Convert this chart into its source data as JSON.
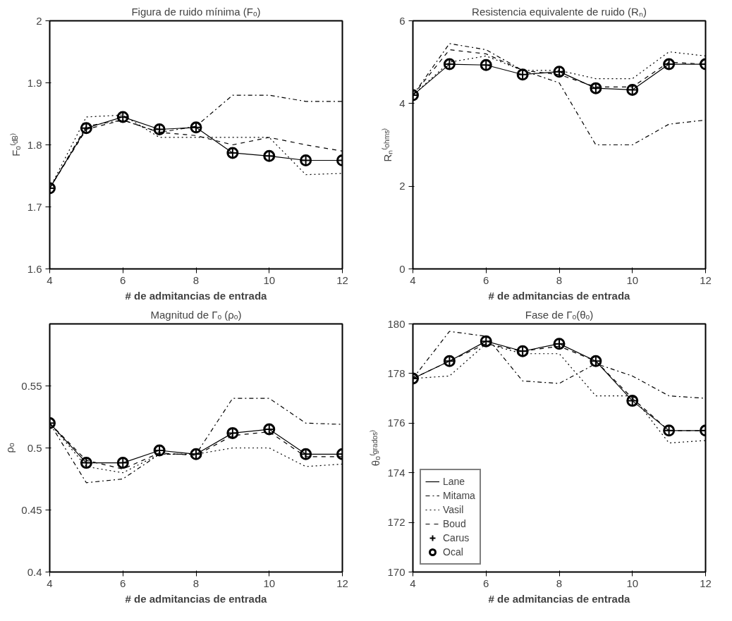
{
  "chart_data": [
    {
      "type": "line",
      "title": "Figura de ruido mínima (Fₒ)",
      "xlabel": "# de admitancias de entrada",
      "ylabel": "Fₒ⁽ᵈᴮ⁾",
      "x": [
        4,
        5,
        6,
        7,
        8,
        9,
        10,
        11,
        12
      ],
      "xlim": [
        4,
        12
      ],
      "xticks": [
        4,
        6,
        8,
        10,
        12
      ],
      "ylim": [
        1.6,
        2
      ],
      "yticks": [
        1.6,
        1.7,
        1.8,
        1.9,
        2
      ],
      "grid": false,
      "legend": false,
      "series": [
        {
          "color": "#000000",
          "line_style": "solid",
          "marker": "none",
          "values": [
            1.73,
            1.827,
            1.845,
            1.825,
            1.828,
            1.787,
            1.782,
            1.775,
            1.775
          ]
        },
        {
          "color": "#000000",
          "line_style": "dashdot",
          "marker": "none",
          "values": [
            1.73,
            1.83,
            1.84,
            1.82,
            1.83,
            1.88,
            1.88,
            1.87,
            1.87
          ]
        },
        {
          "color": "#000000",
          "line_style": "dotted",
          "marker": "none",
          "values": [
            1.73,
            1.845,
            1.848,
            1.812,
            1.812,
            1.812,
            1.812,
            1.752,
            1.754
          ]
        },
        {
          "color": "#000000",
          "line_style": "dashed",
          "marker": "none",
          "values": [
            1.73,
            1.825,
            1.84,
            1.82,
            1.815,
            1.8,
            1.812,
            1.8,
            1.79
          ]
        },
        {
          "color": "#000000",
          "type": "scatter",
          "marker": "cross",
          "values": [
            1.73,
            1.827,
            1.845,
            1.825,
            1.828,
            1.787,
            1.782,
            1.775,
            1.775
          ]
        },
        {
          "color": "#000000",
          "type": "scatter",
          "marker": "circle",
          "values": [
            1.73,
            1.827,
            1.845,
            1.825,
            1.828,
            1.787,
            1.782,
            1.775,
            1.775
          ]
        }
      ]
    },
    {
      "type": "line",
      "title": "Resistencia equivalente de ruido (Rₙ)",
      "xlabel": "# de admitancias de entrada",
      "ylabel": "Rₙ⁽ᵒʰᵐˢ⁾",
      "x": [
        4,
        5,
        6,
        7,
        8,
        9,
        10,
        11,
        12
      ],
      "xlim": [
        4,
        12
      ],
      "xticks": [
        4,
        6,
        8,
        10,
        12
      ],
      "ylim": [
        0,
        6
      ],
      "yticks": [
        0,
        2,
        4,
        6
      ],
      "grid": false,
      "legend": false,
      "series": [
        {
          "color": "#000000",
          "line_style": "solid",
          "marker": "none",
          "values": [
            4.2,
            4.95,
            4.93,
            4.7,
            4.77,
            4.37,
            4.33,
            4.95,
            4.95
          ]
        },
        {
          "color": "#000000",
          "line_style": "dashdot",
          "marker": "none",
          "values": [
            4.2,
            5.45,
            5.3,
            4.8,
            4.5,
            3.0,
            3.0,
            3.5,
            3.6
          ]
        },
        {
          "color": "#000000",
          "line_style": "dotted",
          "marker": "none",
          "values": [
            4.2,
            5.0,
            5.15,
            4.8,
            4.8,
            4.6,
            4.6,
            5.25,
            5.15
          ]
        },
        {
          "color": "#000000",
          "line_style": "dashed",
          "marker": "none",
          "values": [
            4.2,
            5.3,
            5.2,
            4.8,
            4.7,
            4.4,
            4.4,
            5.0,
            4.95
          ]
        },
        {
          "color": "#000000",
          "type": "scatter",
          "marker": "cross",
          "values": [
            4.2,
            4.95,
            4.93,
            4.7,
            4.77,
            4.37,
            4.33,
            4.95,
            4.95
          ]
        },
        {
          "color": "#000000",
          "type": "scatter",
          "marker": "circle",
          "values": [
            4.2,
            4.95,
            4.93,
            4.7,
            4.77,
            4.37,
            4.33,
            4.95,
            4.95
          ]
        }
      ]
    },
    {
      "type": "line",
      "title": "Magnitud de Γₒ (ρₒ)",
      "xlabel": "# de admitancias de entrada",
      "ylabel": "ρₒ",
      "x": [
        4,
        5,
        6,
        7,
        8,
        9,
        10,
        11,
        12
      ],
      "xlim": [
        4,
        12
      ],
      "xticks": [
        4,
        6,
        8,
        10,
        12
      ],
      "ylim": [
        0.4,
        0.6
      ],
      "yticks": [
        0.4,
        0.45,
        0.5,
        0.55
      ],
      "grid": false,
      "legend": false,
      "series": [
        {
          "color": "#000000",
          "line_style": "solid",
          "marker": "none",
          "values": [
            0.52,
            0.488,
            0.488,
            0.498,
            0.495,
            0.512,
            0.515,
            0.495,
            0.495
          ]
        },
        {
          "color": "#000000",
          "line_style": "dashdot",
          "marker": "none",
          "values": [
            0.52,
            0.472,
            0.475,
            0.495,
            0.495,
            0.54,
            0.54,
            0.52,
            0.519
          ]
        },
        {
          "color": "#000000",
          "line_style": "dotted",
          "marker": "none",
          "values": [
            0.52,
            0.485,
            0.48,
            0.495,
            0.495,
            0.5,
            0.5,
            0.485,
            0.487
          ]
        },
        {
          "color": "#000000",
          "line_style": "dashed",
          "marker": "none",
          "values": [
            0.52,
            0.49,
            0.483,
            0.496,
            0.494,
            0.51,
            0.513,
            0.493,
            0.493
          ]
        },
        {
          "color": "#000000",
          "type": "scatter",
          "marker": "cross",
          "values": [
            0.52,
            0.488,
            0.488,
            0.498,
            0.495,
            0.512,
            0.515,
            0.495,
            0.495
          ]
        },
        {
          "color": "#000000",
          "type": "scatter",
          "marker": "circle",
          "values": [
            0.52,
            0.488,
            0.488,
            0.498,
            0.495,
            0.512,
            0.515,
            0.495,
            0.495
          ]
        }
      ]
    },
    {
      "type": "line",
      "title": "Fase de Γₒ(θₒ)",
      "xlabel": "# de admitancias de entrada",
      "ylabel": "θₒ⁽ᵍʳᵃᵈᵒˢ⁾",
      "x": [
        4,
        5,
        6,
        7,
        8,
        9,
        10,
        11,
        12
      ],
      "xlim": [
        4,
        12
      ],
      "xticks": [
        4,
        6,
        8,
        10,
        12
      ],
      "ylim": [
        170,
        180
      ],
      "yticks": [
        170,
        172,
        174,
        176,
        178,
        180
      ],
      "grid": false,
      "legend": "bottom left",
      "series": [
        {
          "name": "Lane",
          "color": "#000000",
          "line_style": "solid",
          "marker": "none",
          "values": [
            177.8,
            178.5,
            179.3,
            178.9,
            179.2,
            178.5,
            176.9,
            175.7,
            175.7
          ]
        },
        {
          "name": "Mitama",
          "color": "#000000",
          "line_style": "dashdot",
          "marker": "none",
          "values": [
            177.8,
            179.7,
            179.5,
            177.7,
            177.6,
            178.4,
            177.9,
            177.1,
            177.0
          ]
        },
        {
          "name": "Vasil",
          "color": "#000000",
          "line_style": "dotted",
          "marker": "none",
          "values": [
            177.8,
            177.9,
            179.2,
            178.8,
            178.8,
            177.1,
            177.1,
            175.2,
            175.3
          ]
        },
        {
          "name": "Boud",
          "color": "#000000",
          "line_style": "dashed",
          "marker": "none",
          "values": [
            177.8,
            178.5,
            179.2,
            178.9,
            179.1,
            178.5,
            177.0,
            175.7,
            175.7
          ]
        },
        {
          "name": "Carus",
          "color": "#000000",
          "type": "scatter",
          "marker": "cross",
          "values": [
            177.8,
            178.5,
            179.3,
            178.9,
            179.2,
            178.5,
            176.9,
            175.7,
            175.7
          ]
        },
        {
          "name": "Ocal",
          "color": "#000000",
          "type": "scatter",
          "marker": "circle",
          "values": [
            177.8,
            178.5,
            179.3,
            178.9,
            179.2,
            178.5,
            176.9,
            175.7,
            175.7
          ]
        }
      ]
    }
  ]
}
